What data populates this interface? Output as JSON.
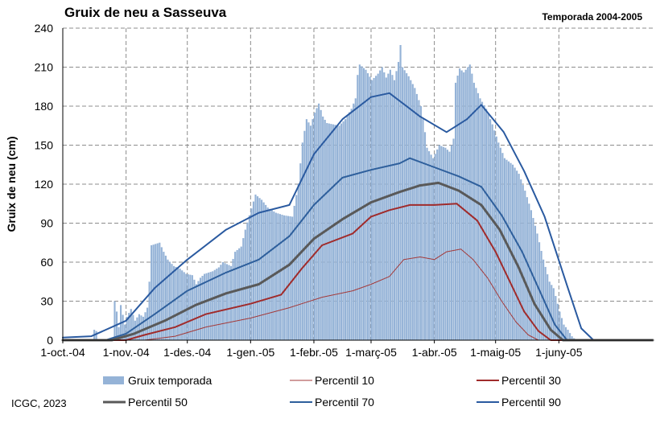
{
  "chart_data": {
    "type": "area",
    "title": "Gruix de neu a Sasseuva",
    "subtitle": "Temporada 2004-2005",
    "ylabel": "Gruix de neu (cm)",
    "xlabel": "",
    "credit": "ICGC, 2023",
    "ylim": [
      0,
      240
    ],
    "yticks": [
      0,
      30,
      60,
      90,
      120,
      150,
      180,
      210,
      240
    ],
    "xlim": [
      "2004-10-01",
      "2005-07-17"
    ],
    "xticks": [
      {
        "date": "2004-10-01",
        "label": "1-oct.-04"
      },
      {
        "date": "2004-11-01",
        "label": "1-nov.-04"
      },
      {
        "date": "2004-12-01",
        "label": "1-des.-04"
      },
      {
        "date": "2005-01-01",
        "label": "1-gen.-05"
      },
      {
        "date": "2005-02-01",
        "label": "1-febr.-05"
      },
      {
        "date": "2005-03-01",
        "label": "1-març-05"
      },
      {
        "date": "2005-04-01",
        "label": "1-abr.-05"
      },
      {
        "date": "2005-05-01",
        "label": "1-maig-05"
      },
      {
        "date": "2005-06-01",
        "label": "1-juny-05"
      }
    ],
    "grid": true,
    "legend_position": "bottom",
    "series": [
      {
        "name": "Gruix temporada",
        "kind": "bar",
        "color": "#95b3d7",
        "points": [
          [
            "2004-10-01",
            0
          ],
          [
            "2004-10-15",
            0
          ],
          [
            "2004-10-16",
            8
          ],
          [
            "2004-10-17",
            7
          ],
          [
            "2004-10-18",
            0
          ],
          [
            "2004-10-25",
            0
          ],
          [
            "2004-10-26",
            30
          ],
          [
            "2004-10-27",
            22
          ],
          [
            "2004-10-28",
            10
          ],
          [
            "2004-10-29",
            27
          ],
          [
            "2004-10-31",
            12
          ],
          [
            "2004-11-01",
            18
          ],
          [
            "2004-11-03",
            24
          ],
          [
            "2004-11-05",
            15
          ],
          [
            "2004-11-07",
            20
          ],
          [
            "2004-11-09",
            18
          ],
          [
            "2004-11-11",
            25
          ],
          [
            "2004-11-12",
            45
          ],
          [
            "2004-11-13",
            73
          ],
          [
            "2004-11-15",
            74
          ],
          [
            "2004-11-17",
            75
          ],
          [
            "2004-11-19",
            68
          ],
          [
            "2004-11-21",
            62
          ],
          [
            "2004-11-24",
            57
          ],
          [
            "2004-11-27",
            55
          ],
          [
            "2004-11-30",
            51
          ],
          [
            "2004-12-03",
            50
          ],
          [
            "2004-12-05",
            43
          ],
          [
            "2004-12-07",
            48
          ],
          [
            "2004-12-09",
            51
          ],
          [
            "2004-12-13",
            53
          ],
          [
            "2004-12-16",
            56
          ],
          [
            "2004-12-18",
            60
          ],
          [
            "2004-12-22",
            57
          ],
          [
            "2004-12-24",
            68
          ],
          [
            "2004-12-27",
            72
          ],
          [
            "2004-12-29",
            85
          ],
          [
            "2004-12-31",
            96
          ],
          [
            "2005-01-03",
            112
          ],
          [
            "2005-01-06",
            108
          ],
          [
            "2005-01-09",
            102
          ],
          [
            "2005-01-13",
            98
          ],
          [
            "2005-01-17",
            96
          ],
          [
            "2005-01-21",
            95
          ],
          [
            "2005-01-24",
            120
          ],
          [
            "2005-01-26",
            152
          ],
          [
            "2005-01-28",
            170
          ],
          [
            "2005-01-30",
            165
          ],
          [
            "2005-02-01",
            175
          ],
          [
            "2005-02-03",
            182
          ],
          [
            "2005-02-05",
            172
          ],
          [
            "2005-02-07",
            167
          ],
          [
            "2005-02-10",
            166
          ],
          [
            "2005-02-13",
            165
          ],
          [
            "2005-02-16",
            170
          ],
          [
            "2005-02-19",
            178
          ],
          [
            "2005-02-21",
            186
          ],
          [
            "2005-02-22",
            204
          ],
          [
            "2005-02-23",
            212
          ],
          [
            "2005-02-26",
            208
          ],
          [
            "2005-03-01",
            200
          ],
          [
            "2005-03-04",
            205
          ],
          [
            "2005-03-06",
            210
          ],
          [
            "2005-03-08",
            202
          ],
          [
            "2005-03-10",
            208
          ],
          [
            "2005-03-12",
            200
          ],
          [
            "2005-03-14",
            214
          ],
          [
            "2005-03-15",
            227
          ],
          [
            "2005-03-16",
            210
          ],
          [
            "2005-03-19",
            203
          ],
          [
            "2005-03-22",
            194
          ],
          [
            "2005-03-25",
            180
          ],
          [
            "2005-03-27",
            160
          ],
          [
            "2005-03-28",
            148
          ],
          [
            "2005-03-31",
            140
          ],
          [
            "2005-04-03",
            150
          ],
          [
            "2005-04-06",
            148
          ],
          [
            "2005-04-08",
            145
          ],
          [
            "2005-04-10",
            155
          ],
          [
            "2005-04-11",
            198
          ],
          [
            "2005-04-13",
            209
          ],
          [
            "2005-04-15",
            206
          ],
          [
            "2005-04-18",
            212
          ],
          [
            "2005-04-20",
            198
          ],
          [
            "2005-04-23",
            186
          ],
          [
            "2005-04-26",
            178
          ],
          [
            "2005-04-29",
            166
          ],
          [
            "2005-05-02",
            152
          ],
          [
            "2005-05-05",
            140
          ],
          [
            "2005-05-09",
            135
          ],
          [
            "2005-05-12",
            128
          ],
          [
            "2005-05-15",
            115
          ],
          [
            "2005-05-18",
            100
          ],
          [
            "2005-05-21",
            82
          ],
          [
            "2005-05-24",
            62
          ],
          [
            "2005-05-27",
            45
          ],
          [
            "2005-05-29",
            40
          ],
          [
            "2005-06-01",
            22
          ],
          [
            "2005-06-03",
            12
          ],
          [
            "2005-06-05",
            8
          ],
          [
            "2005-06-07",
            3
          ],
          [
            "2005-06-09",
            0
          ],
          [
            "2005-07-17",
            0
          ]
        ]
      },
      {
        "name": "Percentil 10",
        "kind": "line",
        "color": "#a33a3a",
        "width": 1,
        "points": [
          [
            "2004-10-01",
            0
          ],
          [
            "2004-11-10",
            0
          ],
          [
            "2004-11-25",
            3
          ],
          [
            "2004-12-10",
            10
          ],
          [
            "2005-01-01",
            17
          ],
          [
            "2005-01-20",
            25
          ],
          [
            "2005-02-05",
            33
          ],
          [
            "2005-02-20",
            38
          ],
          [
            "2005-03-01",
            43
          ],
          [
            "2005-03-10",
            49
          ],
          [
            "2005-03-17",
            62
          ],
          [
            "2005-03-25",
            64
          ],
          [
            "2005-04-01",
            62
          ],
          [
            "2005-04-07",
            68
          ],
          [
            "2005-04-14",
            70
          ],
          [
            "2005-04-20",
            62
          ],
          [
            "2005-04-27",
            48
          ],
          [
            "2005-05-04",
            30
          ],
          [
            "2005-05-11",
            14
          ],
          [
            "2005-05-17",
            4
          ],
          [
            "2005-05-22",
            0
          ],
          [
            "2005-07-17",
            0
          ]
        ]
      },
      {
        "name": "Percentil 30",
        "kind": "line",
        "color": "#a02b2b",
        "width": 2,
        "points": [
          [
            "2004-10-01",
            0
          ],
          [
            "2004-11-01",
            0
          ],
          [
            "2004-11-10",
            4
          ],
          [
            "2004-11-25",
            10
          ],
          [
            "2004-12-10",
            20
          ],
          [
            "2005-01-01",
            28
          ],
          [
            "2005-01-16",
            35
          ],
          [
            "2005-01-26",
            55
          ],
          [
            "2005-02-05",
            73
          ],
          [
            "2005-02-20",
            82
          ],
          [
            "2005-03-01",
            95
          ],
          [
            "2005-03-10",
            100
          ],
          [
            "2005-03-20",
            104
          ],
          [
            "2005-04-01",
            104
          ],
          [
            "2005-04-12",
            105
          ],
          [
            "2005-04-22",
            92
          ],
          [
            "2005-05-01",
            68
          ],
          [
            "2005-05-08",
            45
          ],
          [
            "2005-05-15",
            22
          ],
          [
            "2005-05-22",
            7
          ],
          [
            "2005-05-28",
            0
          ],
          [
            "2005-07-17",
            0
          ]
        ]
      },
      {
        "name": "Percentil 50",
        "kind": "line",
        "color": "#595959",
        "width": 3,
        "points": [
          [
            "2004-10-01",
            0
          ],
          [
            "2004-10-25",
            0
          ],
          [
            "2004-11-05",
            5
          ],
          [
            "2004-11-20",
            15
          ],
          [
            "2004-12-05",
            27
          ],
          [
            "2004-12-20",
            36
          ],
          [
            "2005-01-05",
            43
          ],
          [
            "2005-01-20",
            58
          ],
          [
            "2005-02-01",
            78
          ],
          [
            "2005-02-15",
            93
          ],
          [
            "2005-03-01",
            106
          ],
          [
            "2005-03-15",
            114
          ],
          [
            "2005-03-25",
            119
          ],
          [
            "2005-04-03",
            121
          ],
          [
            "2005-04-13",
            115
          ],
          [
            "2005-04-24",
            104
          ],
          [
            "2005-05-03",
            85
          ],
          [
            "2005-05-12",
            57
          ],
          [
            "2005-05-20",
            28
          ],
          [
            "2005-05-28",
            8
          ],
          [
            "2005-06-03",
            0
          ],
          [
            "2005-07-17",
            0
          ]
        ]
      },
      {
        "name": "Percentil 70",
        "kind": "line",
        "color": "#2e5f9c",
        "width": 2,
        "points": [
          [
            "2004-10-01",
            0
          ],
          [
            "2004-10-22",
            0
          ],
          [
            "2004-11-01",
            5
          ],
          [
            "2004-11-15",
            20
          ],
          [
            "2004-12-01",
            38
          ],
          [
            "2004-12-20",
            52
          ],
          [
            "2005-01-05",
            62
          ],
          [
            "2005-01-20",
            80
          ],
          [
            "2005-02-01",
            104
          ],
          [
            "2005-02-15",
            125
          ],
          [
            "2005-03-01",
            131
          ],
          [
            "2005-03-15",
            136
          ],
          [
            "2005-03-20",
            140
          ],
          [
            "2005-04-01",
            133
          ],
          [
            "2005-04-13",
            126
          ],
          [
            "2005-04-24",
            118
          ],
          [
            "2005-05-04",
            96
          ],
          [
            "2005-05-14",
            68
          ],
          [
            "2005-05-22",
            40
          ],
          [
            "2005-05-30",
            12
          ],
          [
            "2005-06-05",
            0
          ],
          [
            "2005-07-17",
            0
          ]
        ]
      },
      {
        "name": "Percentil 90",
        "kind": "line",
        "color": "#2a5aa0",
        "width": 2,
        "points": [
          [
            "2004-10-01",
            2
          ],
          [
            "2004-10-15",
            3
          ],
          [
            "2004-11-01",
            15
          ],
          [
            "2004-11-15",
            40
          ],
          [
            "2004-12-01",
            62
          ],
          [
            "2004-12-20",
            85
          ],
          [
            "2005-01-05",
            98
          ],
          [
            "2005-01-20",
            104
          ],
          [
            "2005-02-01",
            143
          ],
          [
            "2005-02-15",
            170
          ],
          [
            "2005-03-01",
            187
          ],
          [
            "2005-03-10",
            190
          ],
          [
            "2005-03-25",
            172
          ],
          [
            "2005-04-07",
            160
          ],
          [
            "2005-04-17",
            170
          ],
          [
            "2005-04-24",
            181
          ],
          [
            "2005-05-05",
            160
          ],
          [
            "2005-05-15",
            130
          ],
          [
            "2005-05-25",
            95
          ],
          [
            "2005-06-05",
            42
          ],
          [
            "2005-06-12",
            9
          ],
          [
            "2005-06-18",
            0
          ],
          [
            "2005-07-17",
            0
          ]
        ]
      }
    ]
  }
}
